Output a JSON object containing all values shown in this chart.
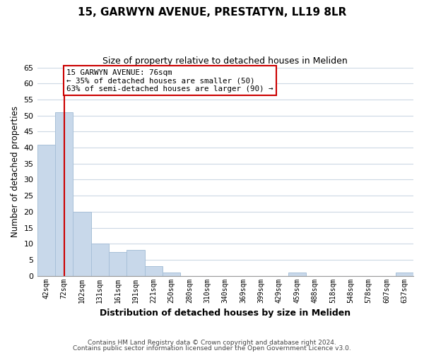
{
  "title": "15, GARWYN AVENUE, PRESTATYN, LL19 8LR",
  "subtitle": "Size of property relative to detached houses in Meliden",
  "xlabel": "Distribution of detached houses by size in Meliden",
  "ylabel": "Number of detached properties",
  "bar_labels": [
    "42sqm",
    "72sqm",
    "102sqm",
    "131sqm",
    "161sqm",
    "191sqm",
    "221sqm",
    "250sqm",
    "280sqm",
    "310sqm",
    "340sqm",
    "369sqm",
    "399sqm",
    "429sqm",
    "459sqm",
    "488sqm",
    "518sqm",
    "548sqm",
    "578sqm",
    "607sqm",
    "637sqm"
  ],
  "bar_values": [
    41,
    51,
    20,
    10,
    7.5,
    8,
    3,
    1,
    0,
    0,
    0,
    0,
    0,
    0,
    1,
    0,
    0,
    0,
    0,
    0,
    1
  ],
  "bar_color": "#c8d8ea",
  "bar_edge_color": "#a8c0d8",
  "vline_x_idx": 1,
  "vline_color": "#cc0000",
  "annotation_lines": [
    "15 GARWYN AVENUE: 76sqm",
    "← 35% of detached houses are smaller (50)",
    "63% of semi-detached houses are larger (90) →"
  ],
  "box_color": "#ffffff",
  "box_edge_color": "#cc0000",
  "ylim": [
    0,
    65
  ],
  "yticks": [
    0,
    5,
    10,
    15,
    20,
    25,
    30,
    35,
    40,
    45,
    50,
    55,
    60,
    65
  ],
  "footer_line1": "Contains HM Land Registry data © Crown copyright and database right 2024.",
  "footer_line2": "Contains public sector information licensed under the Open Government Licence v3.0.",
  "bg_color": "#ffffff",
  "grid_color": "#ccd8e4"
}
